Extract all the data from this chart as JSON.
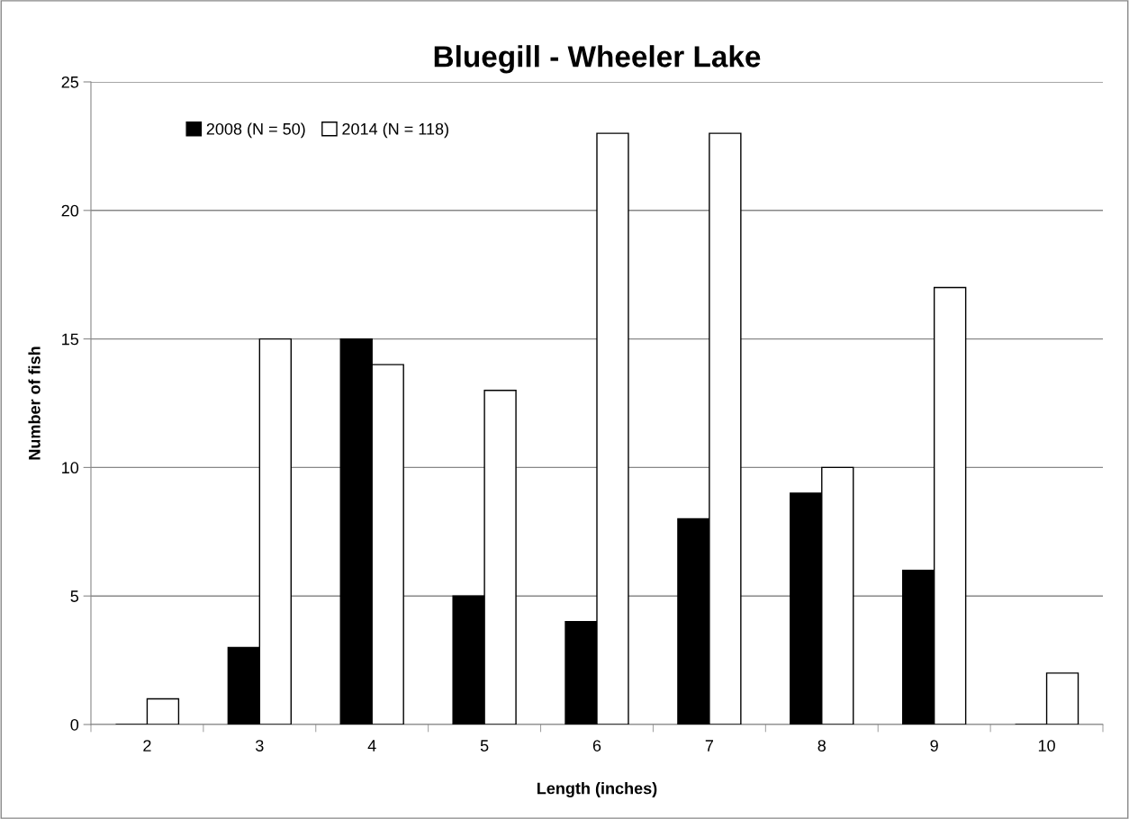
{
  "chart_data": {
    "type": "bar",
    "title": "Bluegill - Wheeler Lake",
    "xlabel": "Length (inches)",
    "ylabel": "Number of fish",
    "categories": [
      "2",
      "3",
      "4",
      "5",
      "6",
      "7",
      "8",
      "9",
      "10"
    ],
    "series": [
      {
        "name": "2008 (N = 50)",
        "color": "#000000",
        "values": [
          0,
          3,
          15,
          5,
          4,
          8,
          9,
          6,
          0
        ]
      },
      {
        "name": "2014 (N = 118)",
        "color": "#ffffff",
        "values": [
          1,
          15,
          14,
          13,
          23,
          23,
          10,
          17,
          2
        ]
      }
    ],
    "ylim": [
      0,
      25
    ],
    "yticks": [
      0,
      5,
      10,
      15,
      20,
      25
    ],
    "grid": "y",
    "legend": "top left"
  }
}
